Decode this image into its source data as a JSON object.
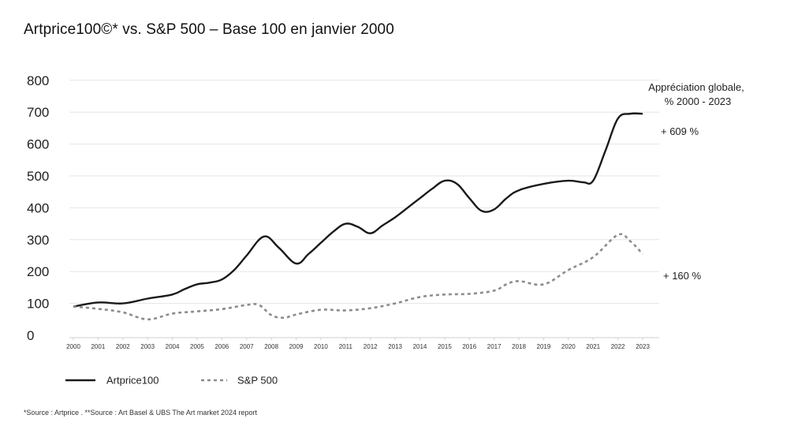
{
  "title": "Artprice100©* vs. S&P 500 – Base 100 en janvier 2000",
  "source": "*Source : Artprice . **Source : Art Basel & UBS The Art market 2024 report",
  "annotation": {
    "line1": "Appréciation globale,",
    "line2": "% 2000 - 2023"
  },
  "colors": {
    "artprice": "#1a1a1a",
    "sp500": "#8c8c8c",
    "grid": "#e6e6e6"
  },
  "chart_data": {
    "type": "line",
    "title": "Artprice100©* vs. S&P 500 – Base 100 en janvier 2000",
    "xlabel": "",
    "ylabel": "",
    "ylim": [
      0,
      800
    ],
    "yticks": [
      0,
      100,
      200,
      300,
      400,
      500,
      600,
      700,
      800
    ],
    "xticks": [
      "2000",
      "2001",
      "2002",
      "2003",
      "2004",
      "2005",
      "2006",
      "2007",
      "2008",
      "2009",
      "2010",
      "2011",
      "2012",
      "2013",
      "2014",
      "2015",
      "2016",
      "2017",
      "2018",
      "2019",
      "2020",
      "2021",
      "2022",
      "2023"
    ],
    "grid": true,
    "legend_position": "bottom-left",
    "series": [
      {
        "name": "Artprice100",
        "style": "solid",
        "end_label": "+ 609 %",
        "x": [
          2000,
          2001,
          2002,
          2003,
          2004,
          2004.5,
          2005,
          2005.5,
          2006,
          2006.5,
          2007,
          2007.7,
          2008.3,
          2009,
          2009.5,
          2010,
          2010.5,
          2011,
          2011.5,
          2012,
          2012.5,
          2013,
          2013.5,
          2014,
          2014.5,
          2015,
          2015.5,
          2016,
          2016.5,
          2017,
          2017.5,
          2018,
          2019,
          2020,
          2020.6,
          2021,
          2021.5,
          2022,
          2022.5,
          2023
        ],
        "values": [
          90,
          103,
          100,
          115,
          128,
          145,
          160,
          165,
          175,
          205,
          250,
          310,
          275,
          225,
          255,
          290,
          325,
          350,
          340,
          320,
          345,
          370,
          400,
          430,
          460,
          485,
          475,
          430,
          390,
          395,
          430,
          455,
          475,
          485,
          480,
          485,
          580,
          680,
          695,
          695
        ]
      },
      {
        "name": "S&P 500",
        "style": "dashed",
        "end_label": "+ 160 %",
        "x": [
          2000,
          2001,
          2002,
          2003,
          2004,
          2005,
          2006,
          2007,
          2007.5,
          2008,
          2008.5,
          2009,
          2010,
          2011,
          2012,
          2013,
          2014,
          2015,
          2016,
          2017,
          2017.5,
          2018,
          2019,
          2020,
          2021,
          2022,
          2022.5,
          2023
        ],
        "values": [
          90,
          83,
          72,
          50,
          68,
          75,
          82,
          95,
          95,
          63,
          55,
          65,
          80,
          78,
          85,
          100,
          120,
          128,
          130,
          140,
          160,
          170,
          160,
          205,
          245,
          315,
          295,
          255
        ]
      }
    ]
  }
}
